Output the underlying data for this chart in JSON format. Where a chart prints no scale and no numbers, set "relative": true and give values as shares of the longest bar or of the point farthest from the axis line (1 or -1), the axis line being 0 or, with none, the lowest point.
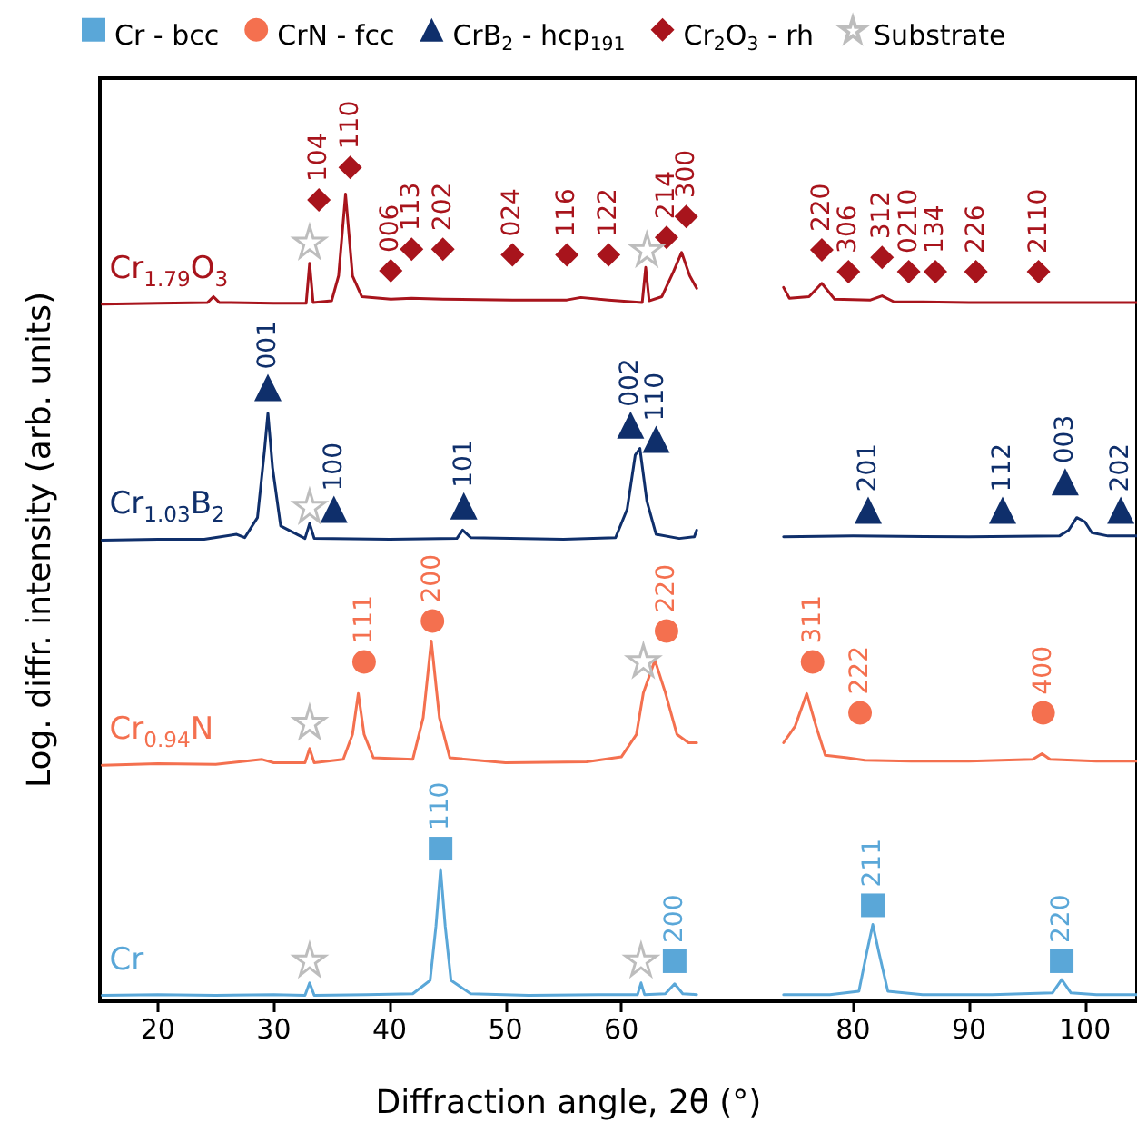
{
  "chart_data": {
    "type": "line",
    "relative": true,
    "xlabel": "Diffraction angle, 2θ (°)",
    "ylabel": "Log. diffr. intensity (arb. units)",
    "xlim": [
      15,
      104.5
    ],
    "xticks": [
      20,
      30,
      40,
      50,
      60,
      80,
      90,
      100
    ],
    "legend": "top",
    "marker": "none",
    "series": [
      {
        "name": "Cr$_{1.79}$O$_{3}$",
        "color": "#a8141c",
        "x": [
          15.2,
          20,
          24.3,
          24.8,
          25.3,
          30,
          32.8,
          33.1,
          33.4,
          35,
          35.6,
          36.2,
          36.8,
          37.6,
          40.1,
          41.9,
          44.6,
          50.6,
          55.3,
          56.5,
          58.9,
          61.8,
          62.1,
          62.4,
          63.5,
          64.5,
          65.2,
          65.9,
          66.5,
          70,
          74,
          74.5,
          76.2,
          77.3,
          78.4,
          81.5,
          82.5,
          83.5,
          90,
          104.5
        ],
        "values": [
          0.836,
          0.837,
          0.838,
          0.845,
          0.838,
          0.837,
          0.837,
          0.885,
          0.838,
          0.84,
          0.87,
          0.968,
          0.87,
          0.845,
          0.842,
          0.843,
          0.842,
          0.841,
          0.841,
          0.844,
          0.841,
          0.838,
          0.88,
          0.84,
          0.845,
          0.875,
          0.898,
          0.87,
          0.855,
          null,
          0.856,
          0.843,
          0.845,
          0.861,
          0.842,
          0.841,
          0.846,
          0.839,
          0.838,
          0.838
        ]
      },
      {
        "name": "Cr$_{1.03}$B$_{2}$",
        "color": "#0f2f6b",
        "x": [
          15.2,
          20,
          24,
          26.8,
          27.5,
          28.6,
          29.2,
          29.5,
          29.9,
          30.6,
          32.7,
          33.1,
          33.5,
          40,
          45.8,
          46.3,
          47,
          55,
          59.5,
          60.5,
          61.2,
          61.6,
          62.2,
          63,
          65,
          66.3,
          66.5,
          70,
          74,
          80,
          90,
          97.8,
          98.6,
          99.3,
          100,
          100.6,
          102,
          104.5
        ],
        "values": [
          0.553,
          0.554,
          0.554,
          0.56,
          0.556,
          0.58,
          0.66,
          0.705,
          0.64,
          0.57,
          0.555,
          0.573,
          0.555,
          0.554,
          0.555,
          0.565,
          0.556,
          0.554,
          0.556,
          0.59,
          0.655,
          0.663,
          0.6,
          0.56,
          0.555,
          0.557,
          0.565,
          null,
          0.557,
          0.558,
          0.557,
          0.558,
          0.565,
          0.58,
          0.575,
          0.562,
          0.558,
          0.558
        ]
      },
      {
        "name": "Cr$_{0.94}$N",
        "color": "#f4704f",
        "x": [
          15.2,
          20,
          25,
          29,
          30,
          32.7,
          33.1,
          33.5,
          36,
          36.8,
          37.3,
          37.8,
          38.6,
          42,
          42.9,
          43.6,
          44.3,
          45.2,
          50,
          57,
          60,
          61.3,
          61.9,
          62.9,
          63.8,
          64.8,
          65.8,
          66.5,
          70,
          74,
          75,
          76,
          76.8,
          77.6,
          79.5,
          81,
          85,
          90,
          95.5,
          96.3,
          97,
          101,
          104.5
        ],
        "values": [
          0.283,
          0.285,
          0.284,
          0.29,
          0.286,
          0.286,
          0.303,
          0.286,
          0.29,
          0.32,
          0.369,
          0.32,
          0.292,
          0.29,
          0.34,
          0.432,
          0.34,
          0.292,
          0.286,
          0.287,
          0.293,
          0.32,
          0.37,
          0.409,
          0.37,
          0.32,
          0.31,
          0.31,
          null,
          0.31,
          0.33,
          0.369,
          0.33,
          0.295,
          0.292,
          0.289,
          0.288,
          0.288,
          0.29,
          0.297,
          0.29,
          0.288,
          0.288
        ]
      },
      {
        "name": "Cr",
        "color": "#5aa7d8",
        "x": [
          15.2,
          20,
          25,
          30,
          32.7,
          33.1,
          33.5,
          38,
          42,
          43.5,
          44,
          44.4,
          44.8,
          45.3,
          47,
          52,
          58,
          61.4,
          61.7,
          62,
          63.8,
          64.6,
          65.3,
          66.5,
          70,
          74,
          78,
          80.5,
          81.2,
          81.7,
          82.2,
          83,
          86,
          92,
          97.2,
          98,
          98.8,
          101,
          104.5
        ],
        "values": [
          0.007,
          0.008,
          0.007,
          0.008,
          0.007,
          0.022,
          0.007,
          0.008,
          0.009,
          0.025,
          0.09,
          0.158,
          0.09,
          0.025,
          0.009,
          0.007,
          0.008,
          0.008,
          0.022,
          0.008,
          0.009,
          0.021,
          0.009,
          0.008,
          null,
          0.008,
          0.008,
          0.012,
          0.06,
          0.092,
          0.06,
          0.012,
          0.008,
          0.008,
          0.01,
          0.026,
          0.01,
          0.008,
          0.008
        ]
      },
      {
        "type": "scatter",
        "name": "Cr - bcc",
        "color": "#5aa7d8",
        "marker": "square",
        "x": [
          44.4,
          64.6,
          81.7,
          98
        ],
        "values": [
          0.183,
          0.048,
          0.115,
          0.048
        ]
      },
      {
        "type": "scatter",
        "name": "CrN - fcc",
        "color": "#f4704f",
        "marker": "circle",
        "x": [
          37.8,
          43.7,
          63.9,
          76.5,
          80.6,
          96.4
        ],
        "values": [
          0.407,
          0.456,
          0.444,
          0.407,
          0.346,
          0.346
        ]
      },
      {
        "type": "scatter",
        "name": "CrB$_{2}$ - hcp$_{191}$",
        "color": "#0f2f6b",
        "marker": "triangle",
        "x": [
          29.5,
          35.2,
          46.4,
          60.8,
          63,
          81.3,
          92.9,
          98.3,
          103.1
        ],
        "values": [
          0.736,
          0.59,
          0.594,
          0.691,
          0.674,
          0.589,
          0.589,
          0.623,
          0.589
        ]
      },
      {
        "type": "scatter",
        "name": "Cr$_{2}$O$_{3}$ - rh",
        "color": "#a8141c",
        "marker": "diamond",
        "x": [
          33.9,
          36.6,
          40.1,
          41.9,
          44.6,
          50.6,
          55.3,
          58.9,
          63.9,
          65.6,
          77.3,
          79.6,
          82.5,
          84.8,
          87.1,
          90.6,
          96
        ],
        "values": [
          0.961,
          1.0,
          0.876,
          0.902,
          0.902,
          0.895,
          0.895,
          0.895,
          0.916,
          0.941,
          0.901,
          0.875,
          0.892,
          0.875,
          0.875,
          0.875,
          0.875
        ]
      },
      {
        "type": "scatter",
        "name": "Substrate",
        "color": "#bdbdbd",
        "marker": "star",
        "x": [
          33.1,
          33.1,
          33.1,
          33.1,
          62.2,
          61.9,
          61.7
        ],
        "values": [
          0.911,
          0.594,
          0.335,
          0.05,
          0.902,
          0.409,
          0.05
        ]
      }
    ],
    "annotations": [
      {
        "text": "110",
        "x": 44.4,
        "y": 0.183
      },
      {
        "text": "200",
        "x": 64.6,
        "y": 0.048
      },
      {
        "text": "211",
        "x": 81.7,
        "y": 0.115
      },
      {
        "text": "220",
        "x": 98,
        "y": 0.048
      },
      {
        "text": "111",
        "x": 37.8,
        "y": 0.407
      },
      {
        "text": "200",
        "x": 43.7,
        "y": 0.456
      },
      {
        "text": "220",
        "x": 63.9,
        "y": 0.444
      },
      {
        "text": "311",
        "x": 76.5,
        "y": 0.407
      },
      {
        "text": "222",
        "x": 80.6,
        "y": 0.346
      },
      {
        "text": "400",
        "x": 96.4,
        "y": 0.346
      },
      {
        "text": "001",
        "x": 29.5,
        "y": 0.736
      },
      {
        "text": "100",
        "x": 35.2,
        "y": 0.59
      },
      {
        "text": "101",
        "x": 46.4,
        "y": 0.594
      },
      {
        "text": "002",
        "x": 60.8,
        "y": 0.691
      },
      {
        "text": "110",
        "x": 63,
        "y": 0.674
      },
      {
        "text": "201",
        "x": 81.3,
        "y": 0.589
      },
      {
        "text": "112",
        "x": 92.9,
        "y": 0.589
      },
      {
        "text": "003",
        "x": 98.3,
        "y": 0.623
      },
      {
        "text": "202",
        "x": 103.1,
        "y": 0.589
      },
      {
        "text": "104",
        "x": 33.9,
        "y": 0.961
      },
      {
        "text": "110",
        "x": 36.6,
        "y": 1.0
      },
      {
        "text": "006",
        "x": 40.1,
        "y": 0.876
      },
      {
        "text": "113",
        "x": 41.9,
        "y": 0.902
      },
      {
        "text": "202",
        "x": 44.6,
        "y": 0.902
      },
      {
        "text": "024",
        "x": 50.6,
        "y": 0.895
      },
      {
        "text": "116",
        "x": 55.3,
        "y": 0.895
      },
      {
        "text": "122",
        "x": 58.9,
        "y": 0.895
      },
      {
        "text": "214",
        "x": 63.9,
        "y": 0.916
      },
      {
        "text": "300",
        "x": 65.6,
        "y": 0.941
      },
      {
        "text": "220",
        "x": 77.3,
        "y": 0.901
      },
      {
        "text": "306",
        "x": 79.6,
        "y": 0.875
      },
      {
        "text": "312",
        "x": 82.5,
        "y": 0.892
      },
      {
        "text": "0210",
        "x": 84.8,
        "y": 0.875
      },
      {
        "text": "134",
        "x": 87.1,
        "y": 0.875
      },
      {
        "text": "226",
        "x": 90.6,
        "y": 0.875
      },
      {
        "text": "2110",
        "x": 96,
        "y": 0.875
      }
    ]
  }
}
